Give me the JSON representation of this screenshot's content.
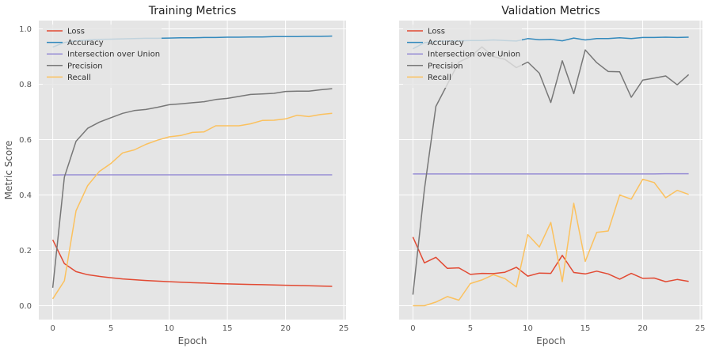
{
  "figure": {
    "ylabel": "Metric Score"
  },
  "chart_data": [
    {
      "type": "line",
      "title": "Training Metrics",
      "xlabel": "Epoch",
      "ylabel": "Metric Score",
      "xlim": [
        -1.2,
        25.2
      ],
      "ylim": [
        -0.05,
        1.03
      ],
      "xticks": [
        0,
        5,
        10,
        15,
        20,
        25
      ],
      "yticks": [
        0.0,
        0.2,
        0.4,
        0.6,
        0.8,
        1.0
      ],
      "grid": true,
      "legend": "top-left",
      "x": [
        0,
        1,
        2,
        3,
        4,
        5,
        6,
        7,
        8,
        9,
        10,
        11,
        12,
        13,
        14,
        15,
        16,
        17,
        18,
        19,
        20,
        21,
        22,
        23,
        24
      ],
      "series": [
        {
          "name": "Loss",
          "color": "#e24a33",
          "values": [
            0.238,
            0.152,
            0.123,
            0.112,
            0.106,
            0.101,
            0.097,
            0.094,
            0.091,
            0.089,
            0.087,
            0.085,
            0.083,
            0.082,
            0.08,
            0.079,
            0.078,
            0.077,
            0.076,
            0.075,
            0.074,
            0.073,
            0.072,
            0.071,
            0.07
          ]
        },
        {
          "name": "Accuracy",
          "color": "#348abd",
          "values": [
            0.934,
            0.951,
            0.957,
            0.96,
            0.962,
            0.963,
            0.964,
            0.965,
            0.966,
            0.966,
            0.967,
            0.968,
            0.968,
            0.969,
            0.969,
            0.97,
            0.97,
            0.971,
            0.971,
            0.972,
            0.972,
            0.972,
            0.973,
            0.973,
            0.974
          ]
        },
        {
          "name": "Intersection over Union",
          "color": "#988ed5",
          "values": [
            0.472,
            0.473,
            0.473,
            0.473,
            0.473,
            0.473,
            0.473,
            0.473,
            0.473,
            0.473,
            0.473,
            0.473,
            0.473,
            0.473,
            0.473,
            0.473,
            0.473,
            0.473,
            0.473,
            0.473,
            0.473,
            0.473,
            0.473,
            0.473,
            0.473
          ]
        },
        {
          "name": "Precision",
          "color": "#777777",
          "values": [
            0.065,
            0.465,
            0.594,
            0.641,
            0.663,
            0.679,
            0.695,
            0.705,
            0.709,
            0.717,
            0.726,
            0.729,
            0.733,
            0.737,
            0.745,
            0.749,
            0.756,
            0.763,
            0.765,
            0.767,
            0.774,
            0.775,
            0.775,
            0.78,
            0.784
          ]
        },
        {
          "name": "Recall",
          "color": "#fbc15e",
          "values": [
            0.025,
            0.09,
            0.343,
            0.434,
            0.485,
            0.514,
            0.552,
            0.563,
            0.583,
            0.598,
            0.61,
            0.615,
            0.626,
            0.628,
            0.65,
            0.65,
            0.65,
            0.657,
            0.669,
            0.67,
            0.675,
            0.688,
            0.683,
            0.691,
            0.695
          ]
        }
      ]
    },
    {
      "type": "line",
      "title": "Validation Metrics",
      "xlabel": "Epoch",
      "ylabel": "",
      "xlim": [
        -1.2,
        25.2
      ],
      "ylim": [
        -0.05,
        1.03
      ],
      "xticks": [
        0,
        5,
        10,
        15,
        20,
        25
      ],
      "yticks": [
        0.0,
        0.2,
        0.4,
        0.6,
        0.8,
        1.0
      ],
      "grid": true,
      "legend": "top-left",
      "x": [
        0,
        1,
        2,
        3,
        4,
        5,
        6,
        7,
        8,
        9,
        10,
        11,
        12,
        13,
        14,
        15,
        16,
        17,
        18,
        19,
        20,
        21,
        22,
        23,
        24
      ],
      "series": [
        {
          "name": "Loss",
          "color": "#e24a33",
          "values": [
            0.248,
            0.155,
            0.175,
            0.135,
            0.137,
            0.113,
            0.117,
            0.116,
            0.121,
            0.139,
            0.107,
            0.118,
            0.117,
            0.182,
            0.12,
            0.115,
            0.125,
            0.115,
            0.096,
            0.117,
            0.099,
            0.1,
            0.087,
            0.095,
            0.088
          ]
        },
        {
          "name": "Accuracy",
          "color": "#348abd",
          "values": [
            0.928,
            0.95,
            0.955,
            0.956,
            0.957,
            0.958,
            0.958,
            0.96,
            0.958,
            0.956,
            0.965,
            0.961,
            0.962,
            0.957,
            0.967,
            0.96,
            0.965,
            0.965,
            0.968,
            0.965,
            0.969,
            0.969,
            0.97,
            0.969,
            0.97
          ]
        },
        {
          "name": "Intersection over Union",
          "color": "#988ed5",
          "values": [
            0.476,
            0.476,
            0.476,
            0.476,
            0.476,
            0.476,
            0.476,
            0.476,
            0.476,
            0.476,
            0.476,
            0.476,
            0.476,
            0.476,
            0.476,
            0.476,
            0.476,
            0.476,
            0.476,
            0.476,
            0.476,
            0.476,
            0.477,
            0.477,
            0.477
          ]
        },
        {
          "name": "Precision",
          "color": "#777777",
          "values": [
            0.04,
            0.42,
            0.72,
            0.8,
            0.88,
            0.9,
            0.935,
            0.9,
            0.89,
            0.86,
            0.88,
            0.84,
            0.734,
            0.885,
            0.766,
            0.924,
            0.878,
            0.846,
            0.845,
            0.753,
            0.815,
            0.822,
            0.83,
            0.798,
            0.835
          ]
        },
        {
          "name": "Recall",
          "color": "#fbc15e",
          "values": [
            0.0,
            0.0,
            0.013,
            0.033,
            0.02,
            0.08,
            0.093,
            0.112,
            0.098,
            0.068,
            0.257,
            0.212,
            0.301,
            0.087,
            0.37,
            0.16,
            0.265,
            0.27,
            0.4,
            0.385,
            0.457,
            0.445,
            0.39,
            0.417,
            0.402
          ]
        }
      ]
    }
  ]
}
